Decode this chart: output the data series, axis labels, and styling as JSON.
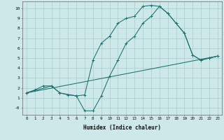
{
  "xlabel": "Humidex (Indice chaleur)",
  "xlim": [
    -0.5,
    23.5
  ],
  "ylim": [
    -0.7,
    10.7
  ],
  "xticks": [
    0,
    1,
    2,
    3,
    4,
    5,
    6,
    7,
    8,
    9,
    10,
    11,
    12,
    13,
    14,
    15,
    16,
    17,
    18,
    19,
    20,
    21,
    22,
    23
  ],
  "yticks": [
    0,
    1,
    2,
    3,
    4,
    5,
    6,
    7,
    8,
    9,
    10
  ],
  "ytick_labels": [
    "-0",
    "1",
    "2",
    "3",
    "4",
    "5",
    "6",
    "7",
    "8",
    "9",
    "10"
  ],
  "bg_color": "#cce8e8",
  "grid_color": "#b0d0d0",
  "line_color": "#1e7070",
  "line1_x": [
    0,
    1,
    2,
    3,
    4,
    5,
    6,
    7,
    8,
    9,
    10,
    11,
    12,
    13,
    14,
    15,
    16,
    17,
    18,
    19,
    20,
    21,
    22,
    23
  ],
  "line1_y": [
    1.5,
    1.8,
    2.2,
    2.2,
    1.5,
    1.3,
    1.2,
    1.3,
    4.8,
    6.5,
    7.2,
    8.5,
    9.0,
    9.2,
    10.2,
    10.3,
    10.2,
    9.5,
    8.5,
    7.5,
    5.3,
    4.8,
    5.0,
    5.2
  ],
  "line2_x": [
    0,
    3,
    4,
    6,
    7,
    8,
    9,
    10,
    11,
    12,
    13,
    14,
    15,
    16,
    17,
    18,
    19,
    20,
    21,
    22,
    23
  ],
  "line2_y": [
    1.5,
    2.2,
    1.5,
    1.2,
    -0.3,
    -0.3,
    1.2,
    3.2,
    4.8,
    6.5,
    7.2,
    8.5,
    9.2,
    10.2,
    9.5,
    8.5,
    7.5,
    5.3,
    4.8,
    5.0,
    5.2
  ],
  "line3_x": [
    0,
    23
  ],
  "line3_y": [
    1.5,
    5.2
  ]
}
